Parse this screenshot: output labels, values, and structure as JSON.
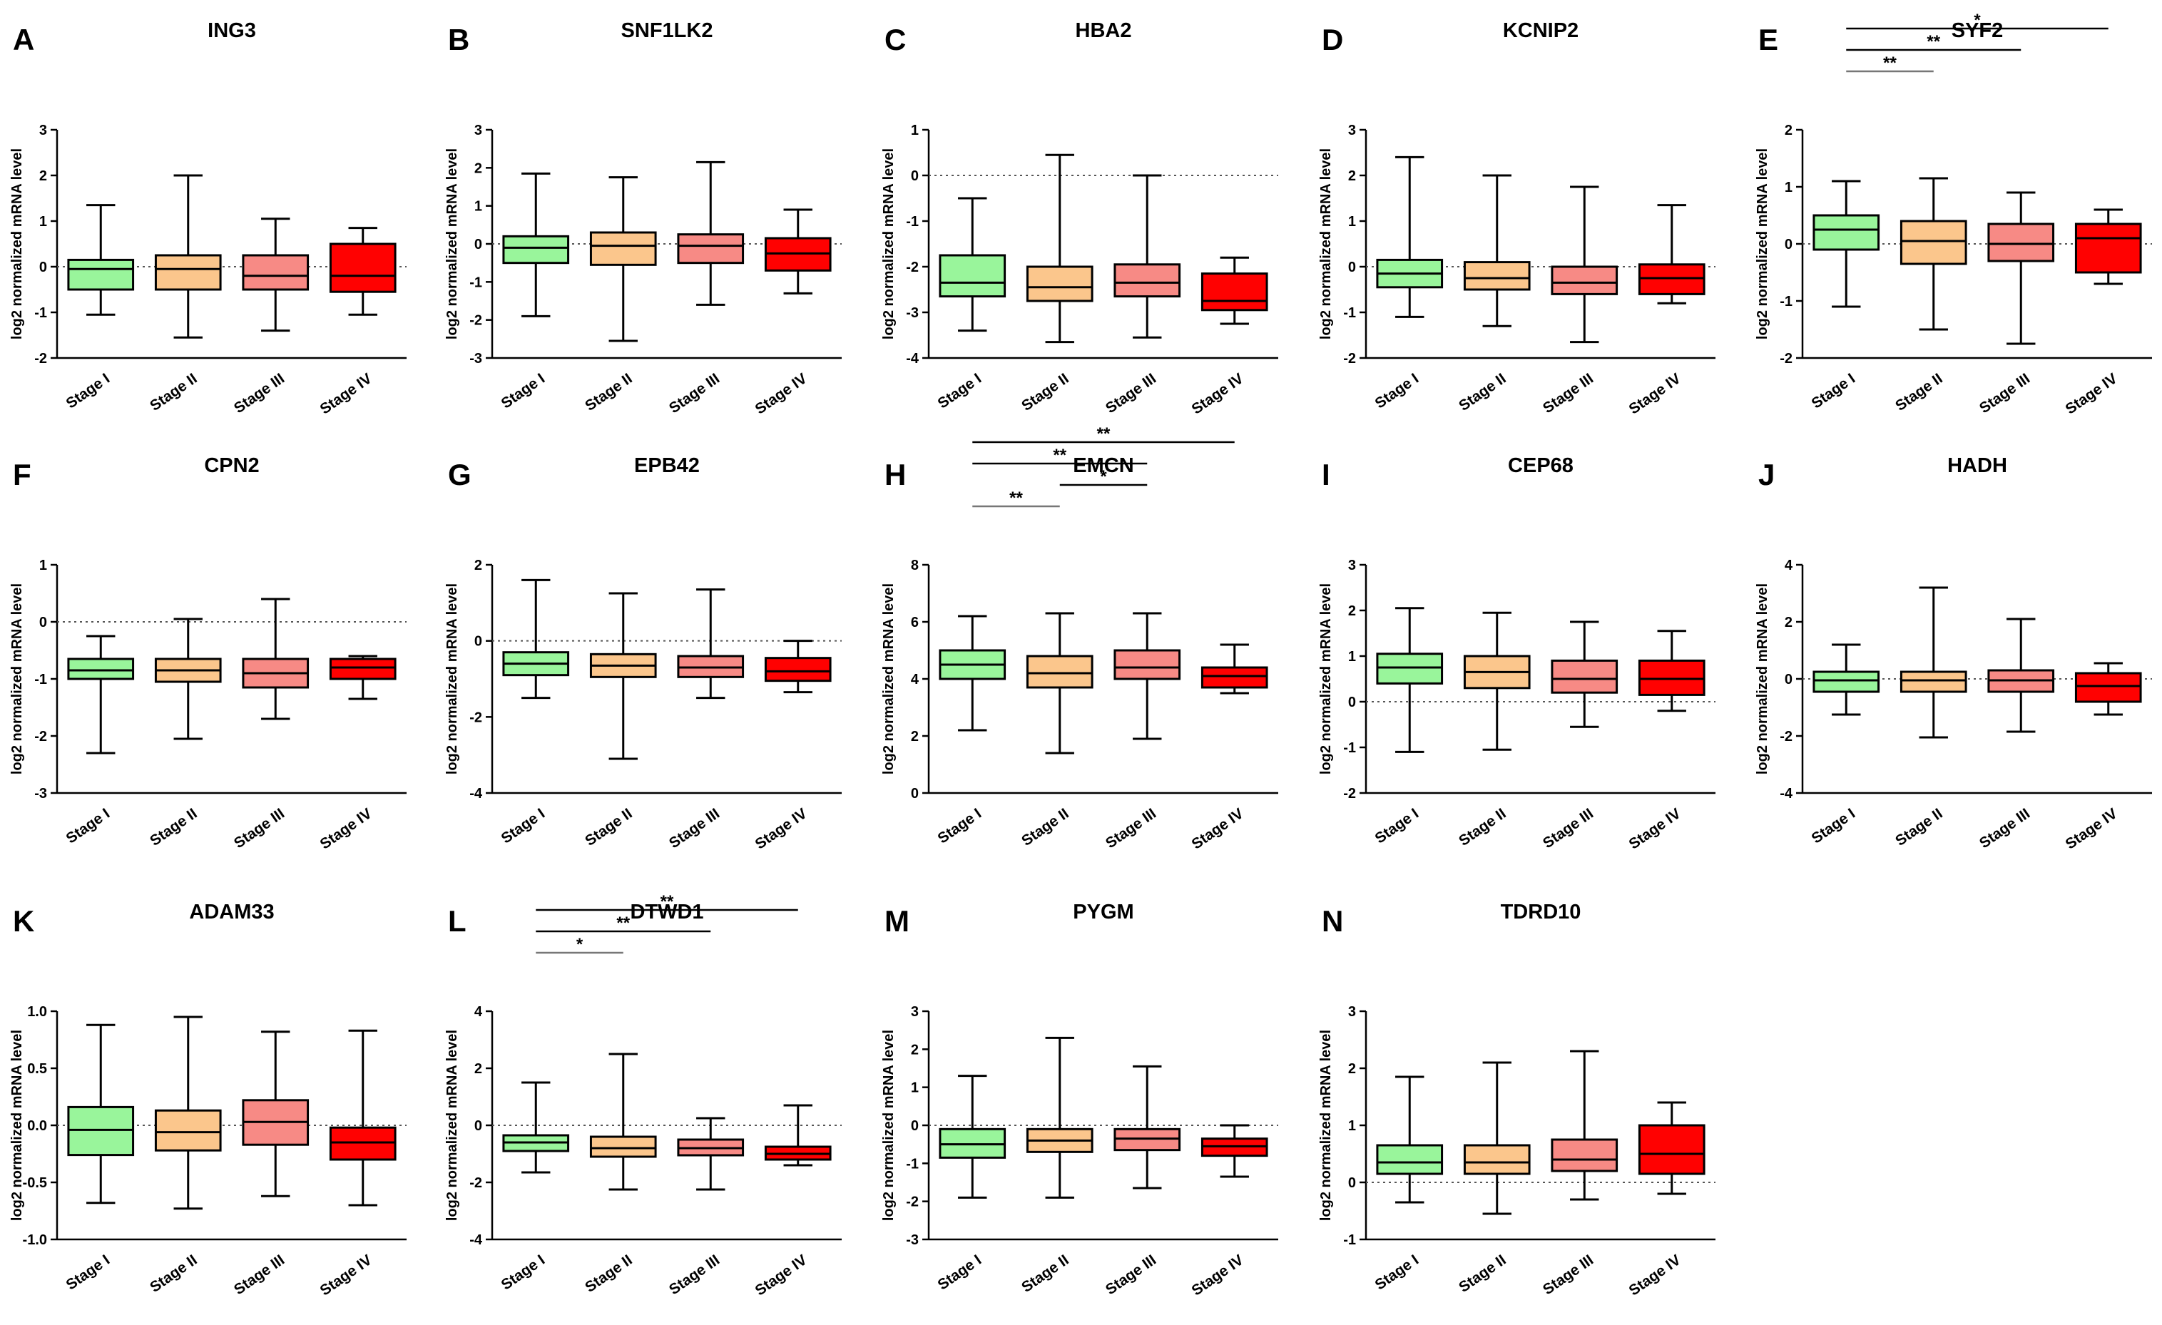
{
  "figure": {
    "colors": {
      "Stage I": "#99f59b",
      "Stage II": "#fbc68c",
      "Stage III": "#f78a85",
      "Stage IV": "#ff0101"
    }
  },
  "chart_data": [
    {
      "panel": "A",
      "type": "boxplot",
      "title": "ING3",
      "ylabel": "log2 normalized mRNA level",
      "categories": [
        "Stage I",
        "Stage II",
        "Stage III",
        "Stage IV"
      ],
      "ylim": [
        -2,
        3
      ],
      "yticks": [
        -2,
        -1,
        0,
        1,
        2,
        3
      ],
      "reference_line": 0,
      "boxes": [
        [
          -1.05,
          -0.5,
          -0.05,
          0.15,
          1.35
        ],
        [
          -1.55,
          -0.5,
          -0.05,
          0.25,
          2.0
        ],
        [
          -1.4,
          -0.5,
          -0.2,
          0.25,
          1.05
        ],
        [
          -1.05,
          -0.55,
          -0.2,
          0.5,
          0.85
        ]
      ],
      "significance": []
    },
    {
      "panel": "B",
      "type": "boxplot",
      "title": "SNF1LK2",
      "ylabel": "log2 normalized mRNA level",
      "categories": [
        "Stage I",
        "Stage II",
        "Stage III",
        "Stage IV"
      ],
      "ylim": [
        -3,
        3
      ],
      "yticks": [
        -3,
        -2,
        -1,
        0,
        1,
        2,
        3
      ],
      "reference_line": 0,
      "boxes": [
        [
          -1.9,
          -0.5,
          -0.1,
          0.2,
          1.85
        ],
        [
          -2.55,
          -0.55,
          -0.05,
          0.3,
          1.75
        ],
        [
          -1.6,
          -0.5,
          -0.05,
          0.25,
          2.15
        ],
        [
          -1.3,
          -0.7,
          -0.25,
          0.15,
          0.9
        ]
      ],
      "significance": []
    },
    {
      "panel": "C",
      "type": "boxplot",
      "title": "HBA2",
      "ylabel": "log2 normalized mRNA level",
      "categories": [
        "Stage I",
        "Stage II",
        "Stage III",
        "Stage IV"
      ],
      "ylim": [
        -4,
        1
      ],
      "yticks": [
        -4,
        -3,
        -2,
        -1,
        0,
        1
      ],
      "reference_line": 0,
      "boxes": [
        [
          -3.4,
          -2.65,
          -2.35,
          -1.75,
          -0.5
        ],
        [
          -3.65,
          -2.75,
          -2.45,
          -2.0,
          0.45
        ],
        [
          -3.55,
          -2.65,
          -2.35,
          -1.95,
          0.0
        ],
        [
          -3.25,
          -2.95,
          -2.75,
          -2.15,
          -1.8
        ]
      ],
      "significance": []
    },
    {
      "panel": "D",
      "type": "boxplot",
      "title": "KCNIP2",
      "ylabel": "log2 normalized mRNA level",
      "categories": [
        "Stage I",
        "Stage II",
        "Stage III",
        "Stage IV"
      ],
      "ylim": [
        -2,
        3
      ],
      "yticks": [
        -2,
        -1,
        0,
        1,
        2,
        3
      ],
      "reference_line": 0,
      "boxes": [
        [
          -1.1,
          -0.45,
          -0.15,
          0.15,
          2.4
        ],
        [
          -1.3,
          -0.5,
          -0.25,
          0.1,
          2.0
        ],
        [
          -1.65,
          -0.6,
          -0.35,
          0.0,
          1.75
        ],
        [
          -0.8,
          -0.6,
          -0.25,
          0.05,
          1.35
        ]
      ],
      "significance": []
    },
    {
      "panel": "E",
      "type": "boxplot",
      "title": "SYF2",
      "ylabel": "log2 normalized mRNA level",
      "categories": [
        "Stage I",
        "Stage II",
        "Stage III",
        "Stage IV"
      ],
      "ylim": [
        -2,
        2
      ],
      "yticks": [
        -2,
        -1,
        0,
        1,
        2
      ],
      "reference_line": 0,
      "boxes": [
        [
          -1.1,
          -0.1,
          0.25,
          0.5,
          1.1
        ],
        [
          -1.5,
          -0.35,
          0.05,
          0.4,
          1.15
        ],
        [
          -1.75,
          -0.3,
          0.0,
          0.35,
          0.9
        ],
        [
          -0.7,
          -0.5,
          0.1,
          0.35,
          0.6
        ]
      ],
      "significance": [
        {
          "from": 0,
          "to": 1,
          "label": "**"
        },
        {
          "from": 0,
          "to": 2,
          "label": "**"
        },
        {
          "from": 0,
          "to": 3,
          "label": "*"
        }
      ]
    },
    {
      "panel": "F",
      "type": "boxplot",
      "title": "CPN2",
      "ylabel": "log2 normalized mRNA level",
      "categories": [
        "Stage I",
        "Stage II",
        "Stage III",
        "Stage IV"
      ],
      "ylim": [
        -3,
        1
      ],
      "yticks": [
        -3,
        -2,
        -1,
        0,
        1
      ],
      "reference_line": 0,
      "boxes": [
        [
          -2.3,
          -1.0,
          -0.85,
          -0.65,
          -0.25
        ],
        [
          -2.05,
          -1.05,
          -0.85,
          -0.65,
          0.05
        ],
        [
          -1.7,
          -1.15,
          -0.9,
          -0.65,
          0.4
        ],
        [
          -1.35,
          -1.0,
          -0.8,
          -0.65,
          -0.6
        ]
      ],
      "significance": []
    },
    {
      "panel": "G",
      "type": "boxplot",
      "title": "EPB42",
      "ylabel": "log2 normalized mRNA level",
      "categories": [
        "Stage I",
        "Stage II",
        "Stage III",
        "Stage IV"
      ],
      "ylim": [
        -4,
        2
      ],
      "yticks": [
        -4,
        -2,
        0,
        2
      ],
      "reference_line": 0,
      "boxes": [
        [
          -1.5,
          -0.9,
          -0.6,
          -0.3,
          1.6
        ],
        [
          -3.1,
          -0.95,
          -0.65,
          -0.35,
          1.25
        ],
        [
          -1.5,
          -0.95,
          -0.7,
          -0.4,
          1.35
        ],
        [
          -1.35,
          -1.05,
          -0.8,
          -0.45,
          0.0
        ]
      ],
      "significance": []
    },
    {
      "panel": "H",
      "type": "boxplot",
      "title": "EMCN",
      "ylabel": "log2 normalized mRNA level",
      "categories": [
        "Stage I",
        "Stage II",
        "Stage III",
        "Stage IV"
      ],
      "ylim": [
        0,
        8
      ],
      "yticks": [
        0,
        2,
        4,
        6,
        8
      ],
      "reference_line": null,
      "boxes": [
        [
          2.2,
          4.0,
          4.5,
          5.0,
          6.2
        ],
        [
          1.4,
          3.7,
          4.2,
          4.8,
          6.3
        ],
        [
          1.9,
          4.0,
          4.4,
          5.0,
          6.3
        ],
        [
          3.5,
          3.7,
          4.1,
          4.4,
          5.2
        ]
      ],
      "significance": [
        {
          "from": 0,
          "to": 1,
          "label": "**"
        },
        {
          "from": 1,
          "to": 2,
          "label": "*"
        },
        {
          "from": 0,
          "to": 2,
          "label": "**"
        },
        {
          "from": 0,
          "to": 3,
          "label": "**"
        }
      ]
    },
    {
      "panel": "I",
      "type": "boxplot",
      "title": "CEP68",
      "ylabel": "log2 normalized mRNA level",
      "categories": [
        "Stage I",
        "Stage II",
        "Stage III",
        "Stage IV"
      ],
      "ylim": [
        -2,
        3
      ],
      "yticks": [
        -2,
        -1,
        0,
        1,
        2,
        3
      ],
      "reference_line": 0,
      "boxes": [
        [
          -1.1,
          0.4,
          0.75,
          1.05,
          2.05
        ],
        [
          -1.05,
          0.3,
          0.65,
          1.0,
          1.95
        ],
        [
          -0.55,
          0.2,
          0.5,
          0.9,
          1.75
        ],
        [
          -0.2,
          0.15,
          0.5,
          0.9,
          1.55
        ]
      ],
      "significance": []
    },
    {
      "panel": "J",
      "type": "boxplot",
      "title": "HADH",
      "ylabel": "log2 normalized mRNA level",
      "categories": [
        "Stage I",
        "Stage II",
        "Stage III",
        "Stage IV"
      ],
      "ylim": [
        -4,
        4
      ],
      "yticks": [
        -4,
        -2,
        0,
        2,
        4
      ],
      "reference_line": 0,
      "boxes": [
        [
          -1.25,
          -0.45,
          -0.05,
          0.25,
          1.2
        ],
        [
          -2.05,
          -0.45,
          -0.05,
          0.25,
          3.2
        ],
        [
          -1.85,
          -0.45,
          -0.05,
          0.3,
          2.1
        ],
        [
          -1.25,
          -0.8,
          -0.25,
          0.2,
          0.55
        ]
      ],
      "significance": []
    },
    {
      "panel": "K",
      "type": "boxplot",
      "title": "ADAM33",
      "ylabel": "log2 normalized mRNA level",
      "categories": [
        "Stage I",
        "Stage II",
        "Stage III",
        "Stage IV"
      ],
      "ylim": [
        -1.0,
        1.0
      ],
      "yticks": [
        "-1.0",
        "-0.5",
        "0.0",
        "0.5",
        "1.0"
      ],
      "reference_line": 0,
      "boxes": [
        [
          -0.68,
          -0.26,
          -0.04,
          0.16,
          0.88
        ],
        [
          -0.73,
          -0.22,
          -0.06,
          0.13,
          0.95
        ],
        [
          -0.62,
          -0.17,
          0.03,
          0.22,
          0.82
        ],
        [
          -0.7,
          -0.3,
          -0.15,
          -0.02,
          0.83
        ]
      ],
      "significance": []
    },
    {
      "panel": "L",
      "type": "boxplot",
      "title": "DTWD1",
      "ylabel": "log2 normalized mRNA level",
      "categories": [
        "Stage I",
        "Stage II",
        "Stage III",
        "Stage IV"
      ],
      "ylim": [
        -4,
        4
      ],
      "yticks": [
        -4,
        -2,
        0,
        2,
        4
      ],
      "reference_line": 0,
      "boxes": [
        [
          -1.65,
          -0.9,
          -0.6,
          -0.35,
          1.5
        ],
        [
          -2.25,
          -1.1,
          -0.8,
          -0.4,
          2.5
        ],
        [
          -2.25,
          -1.05,
          -0.8,
          -0.5,
          0.25
        ],
        [
          -1.4,
          -1.2,
          -1.0,
          -0.75,
          0.7
        ]
      ],
      "significance": [
        {
          "from": 0,
          "to": 1,
          "label": "*"
        },
        {
          "from": 0,
          "to": 2,
          "label": "**"
        },
        {
          "from": 0,
          "to": 3,
          "label": "**"
        }
      ]
    },
    {
      "panel": "M",
      "type": "boxplot",
      "title": "PYGM",
      "ylabel": "log2 normalized mRNA level",
      "categories": [
        "Stage I",
        "Stage II",
        "Stage III",
        "Stage IV"
      ],
      "ylim": [
        -3,
        3
      ],
      "yticks": [
        -3,
        -2,
        -1,
        0,
        1,
        2,
        3
      ],
      "reference_line": 0,
      "boxes": [
        [
          -1.9,
          -0.85,
          -0.5,
          -0.1,
          1.3
        ],
        [
          -1.9,
          -0.7,
          -0.4,
          -0.1,
          2.3
        ],
        [
          -1.65,
          -0.65,
          -0.35,
          -0.1,
          1.55
        ],
        [
          -1.35,
          -0.8,
          -0.55,
          -0.35,
          0.0
        ]
      ],
      "significance": []
    },
    {
      "panel": "N",
      "type": "boxplot",
      "title": "TDRD10",
      "ylabel": "log2 normalized mRNA level",
      "categories": [
        "Stage I",
        "Stage II",
        "Stage III",
        "Stage IV"
      ],
      "ylim": [
        -1,
        3
      ],
      "yticks": [
        -1,
        0,
        1,
        2,
        3
      ],
      "reference_line": 0,
      "boxes": [
        [
          -0.35,
          0.15,
          0.35,
          0.65,
          1.85
        ],
        [
          -0.55,
          0.15,
          0.35,
          0.65,
          2.1
        ],
        [
          -0.3,
          0.2,
          0.4,
          0.75,
          2.3
        ],
        [
          -0.2,
          0.15,
          0.5,
          1.0,
          1.4
        ]
      ],
      "significance": []
    }
  ]
}
